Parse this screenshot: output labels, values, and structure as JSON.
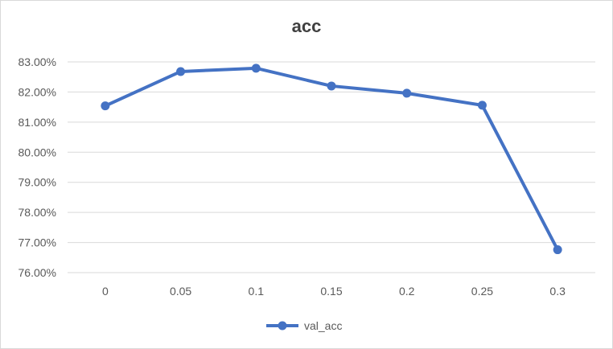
{
  "chart_data": {
    "type": "line",
    "title": "acc",
    "xlabel": "",
    "ylabel": "",
    "categories": [
      "0",
      "0.05",
      "0.1",
      "0.15",
      "0.2",
      "0.25",
      "0.3"
    ],
    "yticks": [
      "76.00%",
      "77.00%",
      "78.00%",
      "79.00%",
      "80.00%",
      "81.00%",
      "82.00%",
      "83.00%"
    ],
    "ylim": [
      0.76,
      0.83
    ],
    "series": [
      {
        "name": "val_acc",
        "values": [
          0.8154,
          0.8268,
          0.8279,
          0.822,
          0.8196,
          0.8156,
          0.7676
        ],
        "color": "#4472c4"
      }
    ],
    "grid": true,
    "legend_position": "bottom"
  }
}
